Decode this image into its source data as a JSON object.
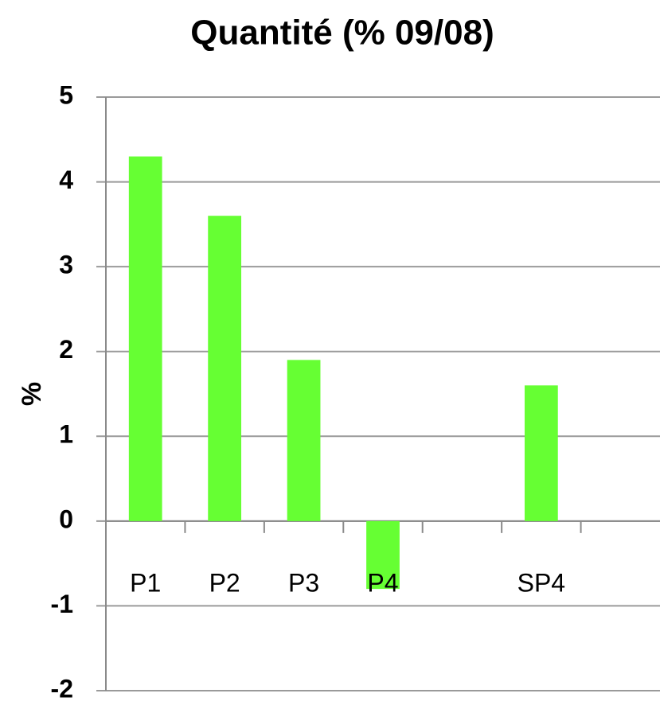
{
  "chart_data": {
    "type": "bar",
    "title": "Quantité (% 09/08)",
    "ylabel": "%",
    "categories": [
      "P1",
      "P2",
      "P3",
      "P4",
      null,
      "SP4",
      null
    ],
    "values": [
      4.3,
      3.6,
      1.9,
      -0.8,
      null,
      1.6,
      null
    ],
    "color": "#66ff33",
    "ylim": [
      -2,
      5
    ],
    "yticks": [
      -2,
      -1,
      0,
      1,
      2,
      3,
      4,
      5
    ],
    "grid": true
  }
}
